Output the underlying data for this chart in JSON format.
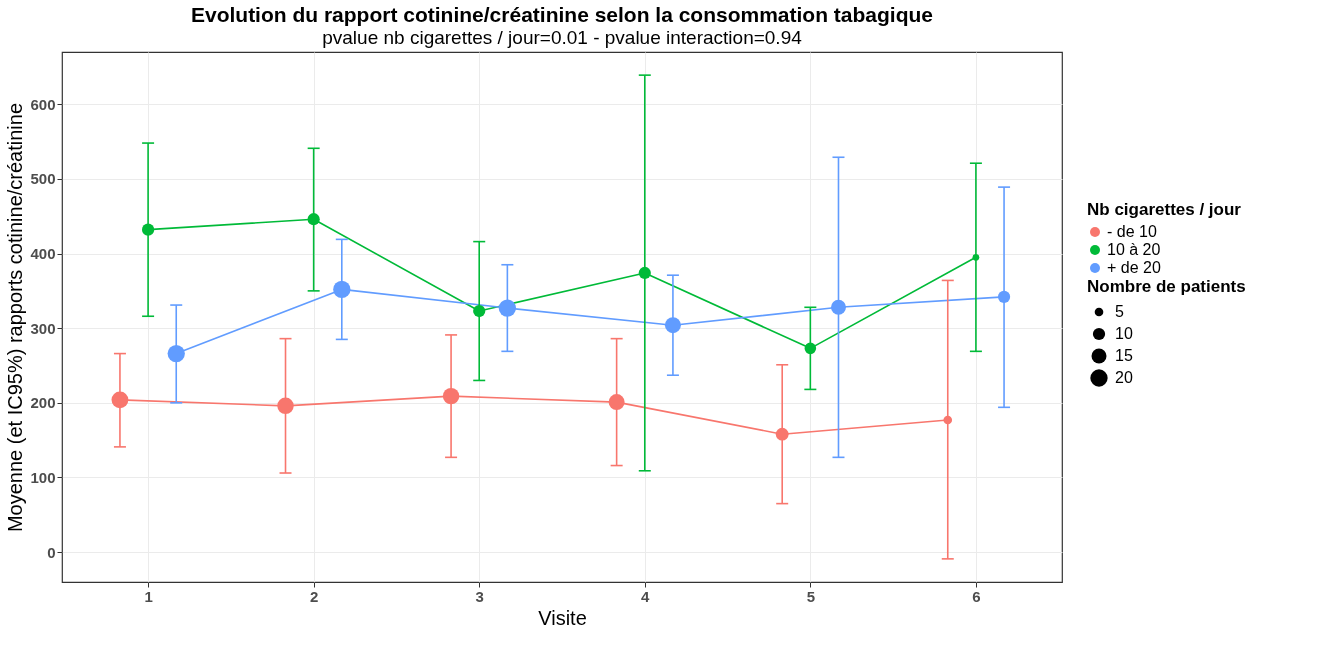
{
  "chart_data": {
    "type": "bubble",
    "title": "Evolution du rapport cotinine/créatinine selon la consommation tabagique",
    "subtitle": "pvalue nb cigarettes / jour=0.01 - pvalue interaction=0.94",
    "xlabel": "Visite",
    "ylabel": "Moyenne (et IC95%) rapports cotinine/créatinine",
    "legend_title": [
      "Nb cigarettes / jour",
      "Nombre de patients"
    ],
    "series": [
      {
        "name": "- de 10",
        "color": "#f8766d",
        "x": [
          0.83,
          1.83,
          2.83,
          3.83,
          4.83,
          5.83
        ],
        "values": [
          204,
          196,
          209,
          201,
          158,
          177
        ],
        "errors": [
          [
            141,
            266
          ],
          [
            106,
            286
          ],
          [
            127,
            291
          ],
          [
            116,
            286
          ],
          [
            65,
            251
          ],
          [
            -9,
            364
          ]
        ],
        "sizes": [
          19,
          18,
          18,
          17,
          11,
          5
        ]
      },
      {
        "name": "10 à 20",
        "color": "#00ba38",
        "x": [
          1,
          2,
          3,
          4,
          5,
          6
        ],
        "values": [
          432,
          446,
          323,
          374,
          273,
          395
        ],
        "errors": [
          [
            316,
            548
          ],
          [
            350,
            541
          ],
          [
            230,
            416
          ],
          [
            109,
            639
          ],
          [
            218,
            328
          ],
          [
            269,
            521
          ]
        ],
        "sizes": [
          10,
          10,
          10,
          10,
          9,
          3
        ]
      },
      {
        "name": "+ de 20",
        "color": "#619cff",
        "x": [
          1.17,
          2.17,
          3.17,
          4.17,
          5.17,
          6.17
        ],
        "values": [
          266,
          352,
          327,
          304,
          328,
          342
        ],
        "errors": [
          [
            200,
            331
          ],
          [
            285,
            419
          ],
          [
            269,
            385
          ],
          [
            237,
            371
          ],
          [
            127,
            529
          ],
          [
            194,
            489
          ]
        ],
        "sizes": [
          20,
          20,
          20,
          17,
          15,
          10
        ]
      },
      {
        "type": "line",
        "marker": "none",
        "color": "#f8766d",
        "x": [
          0.83,
          1.83,
          2.83,
          3.83,
          4.83,
          5.83
        ],
        "values": [
          204,
          196,
          209,
          201,
          158,
          177
        ]
      },
      {
        "type": "line",
        "marker": "none",
        "color": "#00ba38",
        "x": [
          1,
          2,
          3,
          4,
          5,
          6
        ],
        "values": [
          432,
          446,
          323,
          374,
          273,
          395
        ]
      },
      {
        "type": "line",
        "marker": "none",
        "color": "#619cff",
        "x": [
          1.17,
          2.17,
          3.17,
          4.17,
          5.17,
          6.17
        ],
        "values": [
          266,
          352,
          327,
          304,
          328,
          342
        ]
      }
    ],
    "size_legend": [
      5,
      10,
      15,
      20
    ],
    "xlim": [
      0.48,
      6.52
    ],
    "xticks": [
      1,
      2,
      3,
      4,
      5,
      6
    ],
    "ylim": [
      -40,
      670
    ],
    "yticks": [
      0,
      100,
      200,
      300,
      400,
      500,
      600
    ],
    "grid": true,
    "legend": "right",
    "marker": "circle",
    "line_style": "solid"
  }
}
